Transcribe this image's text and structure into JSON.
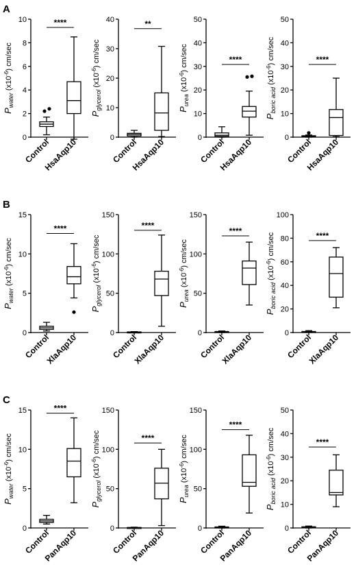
{
  "figure": {
    "rows": [
      {
        "letter": "A",
        "charts": [
          {
            "type": "box",
            "ylabel_sym": "P",
            "ylabel_sub": "water",
            "ylabel_unit": " (x10",
            "ylabel_exp": "-6",
            "ylabel_tail": ") cm/sec",
            "ylim": [
              0,
              10
            ],
            "yticks": [
              0,
              2,
              4,
              6,
              8,
              10
            ],
            "categories": [
              "Control",
              "HsaAqp10"
            ],
            "boxes": [
              {
                "min": 0.2,
                "q1": 0.9,
                "median": 1.1,
                "q3": 1.3,
                "max": 1.7,
                "outliers": [
                  2.2,
                  2.4
                ]
              },
              {
                "min": -0.3,
                "q1": 2.0,
                "median": 3.1,
                "q3": 4.7,
                "max": 8.5,
                "outliers": []
              }
            ],
            "significance": "****",
            "sig_y": 9.3
          },
          {
            "type": "box",
            "ylabel_sym": "P",
            "ylabel_sub": "glycerol",
            "ylabel_unit": " (x10",
            "ylabel_exp": "-6",
            "ylabel_tail": ") cm/sec",
            "ylim": [
              0,
              40
            ],
            "yticks": [
              0,
              10,
              20,
              30,
              40
            ],
            "categories": [
              "Control",
              "HsaAqp10"
            ],
            "boxes": [
              {
                "min": 0.0,
                "q1": 0.4,
                "median": 0.9,
                "q3": 1.3,
                "max": 2.3,
                "outliers": []
              },
              {
                "min": 0.2,
                "q1": 2.3,
                "median": 8.2,
                "q3": 15.0,
                "max": 30.8,
                "outliers": []
              }
            ],
            "significance": "**",
            "sig_y": 36.8
          },
          {
            "type": "box",
            "ylabel_sym": "P",
            "ylabel_sub": "urea",
            "ylabel_unit": " (x10",
            "ylabel_exp": "-6",
            "ylabel_tail": ") cm/sec",
            "ylim": [
              0,
              50
            ],
            "yticks": [
              0,
              10,
              20,
              30,
              40,
              50
            ],
            "categories": [
              "Control",
              "HsaAqp10"
            ],
            "boxes": [
              {
                "min": 0.0,
                "q1": 0.3,
                "median": 0.8,
                "q3": 1.8,
                "max": 4.4,
                "outliers": []
              },
              {
                "min": 0.8,
                "q1": 8.5,
                "median": 11.0,
                "q3": 13.0,
                "max": 19.5,
                "outliers": [
                  25.5,
                  25.8
                ]
              }
            ],
            "significance": "****",
            "sig_y": 30.8
          },
          {
            "type": "box",
            "ylabel_sym": "P",
            "ylabel_sub": "boric acid",
            "ylabel_unit": " (x10",
            "ylabel_exp": "-6",
            "ylabel_tail": ") cm/sec",
            "ylim": [
              0,
              50
            ],
            "yticks": [
              0,
              10,
              20,
              30,
              40,
              50
            ],
            "categories": [
              "Control",
              "HsaAqp10"
            ],
            "boxes": [
              {
                "min": 0.0,
                "q1": 0.1,
                "median": 0.3,
                "q3": 0.6,
                "max": 0.9,
                "outliers": [
                  1.8
                ]
              },
              {
                "min": 0.2,
                "q1": 0.7,
                "median": 8.3,
                "q3": 11.7,
                "max": 25.0,
                "outliers": []
              }
            ],
            "significance": "****",
            "sig_y": 30.8
          }
        ]
      },
      {
        "letter": "B",
        "charts": [
          {
            "type": "box",
            "ylabel_sym": "P",
            "ylabel_sub": "water",
            "ylabel_unit": " (x10",
            "ylabel_exp": "-6",
            "ylabel_tail": ") cm/sec",
            "ylim": [
              0,
              15
            ],
            "yticks": [
              0,
              5,
              10,
              15
            ],
            "categories": [
              "Control",
              "XlaAqp10"
            ],
            "boxes": [
              {
                "min": 0.2,
                "q1": 0.4,
                "median": 0.6,
                "q3": 0.8,
                "max": 1.3,
                "outliers": []
              },
              {
                "min": 4.4,
                "q1": 6.2,
                "median": 7.1,
                "q3": 8.4,
                "max": 11.3,
                "outliers": [
                  2.6
                ]
              }
            ],
            "significance": "****",
            "sig_y": 12.6
          },
          {
            "type": "box",
            "ylabel_sym": "P",
            "ylabel_sub": "glycerol",
            "ylabel_unit": " (x10",
            "ylabel_exp": "-6",
            "ylabel_tail": ") cm/sec",
            "ylim": [
              0,
              150
            ],
            "yticks": [
              0,
              50,
              100,
              150
            ],
            "categories": [
              "Control",
              "XlaAqp10"
            ],
            "boxes": [
              {
                "min": 0.0,
                "q1": 0.2,
                "median": 0.5,
                "q3": 0.8,
                "max": 1.2,
                "outliers": []
              },
              {
                "min": 8.0,
                "q1": 47.0,
                "median": 68.0,
                "q3": 78.0,
                "max": 124.0,
                "outliers": []
              }
            ],
            "significance": "****",
            "sig_y": 130
          },
          {
            "type": "box",
            "ylabel_sym": "P",
            "ylabel_sub": "urea",
            "ylabel_unit": " (x10",
            "ylabel_exp": "-6",
            "ylabel_tail": ") cm/sec",
            "ylim": [
              0,
              150
            ],
            "yticks": [
              0,
              50,
              100,
              150
            ],
            "categories": [
              "Control",
              "XlaAqp10"
            ],
            "boxes": [
              {
                "min": 0.0,
                "q1": 0.3,
                "median": 0.8,
                "q3": 1.3,
                "max": 2.0,
                "outliers": []
              },
              {
                "min": 35.0,
                "q1": 61.0,
                "median": 82.0,
                "q3": 91.0,
                "max": 115.0,
                "outliers": []
              }
            ],
            "significance": "****",
            "sig_y": 123
          },
          {
            "type": "box",
            "ylabel_sym": "P",
            "ylabel_sub": "boric acid",
            "ylabel_unit": " (x10",
            "ylabel_exp": "-6",
            "ylabel_tail": ") cm/sec",
            "ylim": [
              0,
              100
            ],
            "yticks": [
              0,
              20,
              40,
              60,
              80,
              100
            ],
            "categories": [
              "Control",
              "XlaAqp10"
            ],
            "boxes": [
              {
                "min": 0.0,
                "q1": 0.2,
                "median": 0.5,
                "q3": 0.9,
                "max": 1.6,
                "outliers": []
              },
              {
                "min": 21.0,
                "q1": 30.0,
                "median": 50.0,
                "q3": 64.0,
                "max": 72.0,
                "outliers": []
              }
            ],
            "significance": "****",
            "sig_y": 78
          }
        ]
      },
      {
        "letter": "C",
        "charts": [
          {
            "type": "box",
            "ylabel_sym": "P",
            "ylabel_sub": "water",
            "ylabel_unit": " (x10",
            "ylabel_exp": "-6",
            "ylabel_tail": ") cm/sec",
            "ylim": [
              0,
              15
            ],
            "yticks": [
              0,
              5,
              10,
              15
            ],
            "categories": [
              "Control",
              "PanAqp10"
            ],
            "boxes": [
              {
                "min": 0.5,
                "q1": 0.7,
                "median": 0.9,
                "q3": 1.1,
                "max": 1.6,
                "outliers": []
              },
              {
                "min": 3.2,
                "q1": 6.5,
                "median": 8.5,
                "q3": 10.1,
                "max": 14.0,
                "outliers": []
              }
            ],
            "significance": "****",
            "sig_y": 14.6
          },
          {
            "type": "box",
            "ylabel_sym": "P",
            "ylabel_sub": "glycerol",
            "ylabel_unit": " (x10",
            "ylabel_exp": "-6",
            "ylabel_tail": ") cm/sec",
            "ylim": [
              0,
              150
            ],
            "yticks": [
              0,
              50,
              100,
              150
            ],
            "categories": [
              "Control",
              "PanAqp10"
            ],
            "boxes": [
              {
                "min": 0.0,
                "q1": 0.2,
                "median": 0.4,
                "q3": 0.6,
                "max": 1.0,
                "outliers": []
              },
              {
                "min": 3.0,
                "q1": 37.0,
                "median": 57.0,
                "q3": 76.0,
                "max": 100.0,
                "outliers": []
              }
            ],
            "significance": "****",
            "sig_y": 108
          },
          {
            "type": "box",
            "ylabel_sym": "P",
            "ylabel_sub": "urea",
            "ylabel_unit": " (x10",
            "ylabel_exp": "-6",
            "ylabel_tail": ") cm/sec",
            "ylim": [
              0,
              150
            ],
            "yticks": [
              0,
              50,
              100,
              150
            ],
            "categories": [
              "Control",
              "PanAqp10"
            ],
            "boxes": [
              {
                "min": 0.0,
                "q1": 0.3,
                "median": 0.8,
                "q3": 1.3,
                "max": 2.2,
                "outliers": []
              },
              {
                "min": 19.0,
                "q1": 53.0,
                "median": 58.0,
                "q3": 93.0,
                "max": 118.0,
                "outliers": []
              }
            ],
            "significance": "****",
            "sig_y": 125
          },
          {
            "type": "box",
            "ylabel_sym": "P",
            "ylabel_sub": "boric acid",
            "ylabel_unit": " (x10",
            "ylabel_exp": "-6",
            "ylabel_tail": ") cm/sec",
            "ylim": [
              0,
              50
            ],
            "yticks": [
              0,
              10,
              20,
              30,
              40,
              50
            ],
            "categories": [
              "Control",
              "PanAqp10"
            ],
            "boxes": [
              {
                "min": 0.0,
                "q1": 0.1,
                "median": 0.3,
                "q3": 0.5,
                "max": 0.8,
                "outliers": []
              },
              {
                "min": 9.0,
                "q1": 14.0,
                "median": 15.0,
                "q3": 24.5,
                "max": 31.0,
                "outliers": []
              }
            ],
            "significance": "****",
            "sig_y": 34.3
          }
        ]
      }
    ]
  },
  "chart_data": [
    {
      "type": "box",
      "panel": "A",
      "categories": [
        "Control",
        "HsaAqp10"
      ],
      "ylabel": "Pwater (x10-6) cm/sec",
      "ylim": [
        0,
        10
      ],
      "series": [
        {
          "values": [
            [
              0.2,
              0.9,
              1.1,
              1.3,
              1.7
            ],
            [
              -0.3,
              2.0,
              3.1,
              4.7,
              8.5
            ]
          ]
        }
      ],
      "significance": "****"
    },
    {
      "type": "box",
      "panel": "A",
      "categories": [
        "Control",
        "HsaAqp10"
      ],
      "ylabel": "Pglycerol (x10-6) cm/sec",
      "ylim": [
        0,
        40
      ],
      "series": [
        {
          "values": [
            [
              0.0,
              0.4,
              0.9,
              1.3,
              2.3
            ],
            [
              0.2,
              2.3,
              8.2,
              15.0,
              30.8
            ]
          ]
        }
      ],
      "significance": "**"
    },
    {
      "type": "box",
      "panel": "A",
      "categories": [
        "Control",
        "HsaAqp10"
      ],
      "ylabel": "Purea (x10-6) cm/sec",
      "ylim": [
        0,
        50
      ],
      "series": [
        {
          "values": [
            [
              0.0,
              0.3,
              0.8,
              1.8,
              4.4
            ],
            [
              0.8,
              8.5,
              11.0,
              13.0,
              19.5
            ]
          ]
        }
      ],
      "significance": "****"
    },
    {
      "type": "box",
      "panel": "A",
      "categories": [
        "Control",
        "HsaAqp10"
      ],
      "ylabel": "Pboric acid (x10-6) cm/sec",
      "ylim": [
        0,
        50
      ],
      "series": [
        {
          "values": [
            [
              0.0,
              0.1,
              0.3,
              0.6,
              0.9
            ],
            [
              0.2,
              0.7,
              8.3,
              11.7,
              25.0
            ]
          ]
        }
      ],
      "significance": "****"
    },
    {
      "type": "box",
      "panel": "B",
      "categories": [
        "Control",
        "XlaAqp10"
      ],
      "ylabel": "Pwater (x10-6) cm/sec",
      "ylim": [
        0,
        15
      ],
      "series": [
        {
          "values": [
            [
              0.2,
              0.4,
              0.6,
              0.8,
              1.3
            ],
            [
              4.4,
              6.2,
              7.1,
              8.4,
              11.3
            ]
          ]
        }
      ],
      "significance": "****"
    },
    {
      "type": "box",
      "panel": "B",
      "categories": [
        "Control",
        "XlaAqp10"
      ],
      "ylabel": "Pglycerol (x10-6) cm/sec",
      "ylim": [
        0,
        150
      ],
      "series": [
        {
          "values": [
            [
              0.0,
              0.2,
              0.5,
              0.8,
              1.2
            ],
            [
              8.0,
              47.0,
              68.0,
              78.0,
              124.0
            ]
          ]
        }
      ],
      "significance": "****"
    },
    {
      "type": "box",
      "panel": "B",
      "categories": [
        "Control",
        "XlaAqp10"
      ],
      "ylabel": "Purea (x10-6) cm/sec",
      "ylim": [
        0,
        150
      ],
      "series": [
        {
          "values": [
            [
              0.0,
              0.3,
              0.8,
              1.3,
              2.0
            ],
            [
              35.0,
              61.0,
              82.0,
              91.0,
              115.0
            ]
          ]
        }
      ],
      "significance": "****"
    },
    {
      "type": "box",
      "panel": "B",
      "categories": [
        "Control",
        "XlaAqp10"
      ],
      "ylabel": "Pboric acid (x10-6) cm/sec",
      "ylim": [
        0,
        100
      ],
      "series": [
        {
          "values": [
            [
              0.0,
              0.2,
              0.5,
              0.9,
              1.6
            ],
            [
              21.0,
              30.0,
              50.0,
              64.0,
              72.0
            ]
          ]
        }
      ],
      "significance": "****"
    },
    {
      "type": "box",
      "panel": "C",
      "categories": [
        "Control",
        "PanAqp10"
      ],
      "ylabel": "Pwater (x10-6) cm/sec",
      "ylim": [
        0,
        15
      ],
      "series": [
        {
          "values": [
            [
              0.5,
              0.7,
              0.9,
              1.1,
              1.6
            ],
            [
              3.2,
              6.5,
              8.5,
              10.1,
              14.0
            ]
          ]
        }
      ],
      "significance": "****"
    },
    {
      "type": "box",
      "panel": "C",
      "categories": [
        "Control",
        "PanAqp10"
      ],
      "ylabel": "Pglycerol (x10-6) cm/sec",
      "ylim": [
        0,
        150
      ],
      "series": [
        {
          "values": [
            [
              0.0,
              0.2,
              0.4,
              0.6,
              1.0
            ],
            [
              3.0,
              37.0,
              57.0,
              76.0,
              100.0
            ]
          ]
        }
      ],
      "significance": "****"
    },
    {
      "type": "box",
      "panel": "C",
      "categories": [
        "Control",
        "PanAqp10"
      ],
      "ylabel": "Purea (x10-6) cm/sec",
      "ylim": [
        0,
        150
      ],
      "series": [
        {
          "values": [
            [
              0.0,
              0.3,
              0.8,
              1.3,
              2.2
            ],
            [
              19.0,
              53.0,
              58.0,
              93.0,
              118.0
            ]
          ]
        }
      ],
      "significance": "****"
    },
    {
      "type": "box",
      "panel": "C",
      "categories": [
        "Control",
        "PanAqp10"
      ],
      "ylabel": "Pboric acid (x10-6) cm/sec",
      "ylim": [
        0,
        50
      ],
      "series": [
        {
          "values": [
            [
              0.0,
              0.1,
              0.3,
              0.5,
              0.8
            ],
            [
              9.0,
              14.0,
              15.0,
              24.5,
              31.0
            ]
          ]
        }
      ],
      "significance": "****"
    }
  ]
}
